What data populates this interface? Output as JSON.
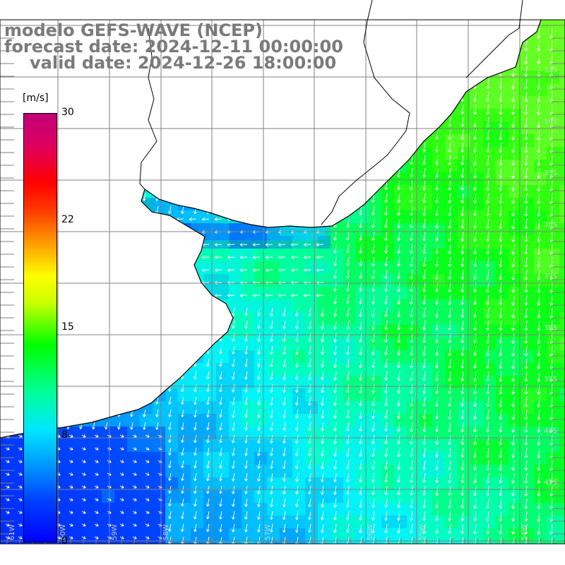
{
  "title": {
    "line1": "modelo GEFS-WAVE (NCEP)",
    "line2": "forecast date: 2024-12-11 00:00:00",
    "line3": "valid date: 2024-12-26 18:00:00"
  },
  "colorbar": {
    "unit": "[m/s]",
    "ticks": [
      "30",
      "22",
      "15",
      "8",
      "0"
    ],
    "range": [
      0,
      30
    ],
    "colors": [
      "#0000ff",
      "#0099ff",
      "#00ffff",
      "#00ff00",
      "#ffff00",
      "#ff8800",
      "#ff0000",
      "#c0007a"
    ]
  },
  "grid": {
    "lat_labels": [
      "33S",
      "34S",
      "35S",
      "36S",
      "37S",
      "38S",
      "39S",
      "40S",
      "41S"
    ],
    "lon_labels": [
      "61W",
      "60W",
      "59W",
      "58W",
      "57W",
      "56W",
      "55W",
      "54W"
    ]
  },
  "map_colors": {
    "ocean_strong": "#00ff33",
    "ocean_mid": "#00ffaa",
    "ocean_weak": "#00ddff",
    "ocean_calm": "#0066ff",
    "land": "#ffffff",
    "coast": "#000000",
    "grid": "#808080",
    "arrows": "#ffffff"
  }
}
